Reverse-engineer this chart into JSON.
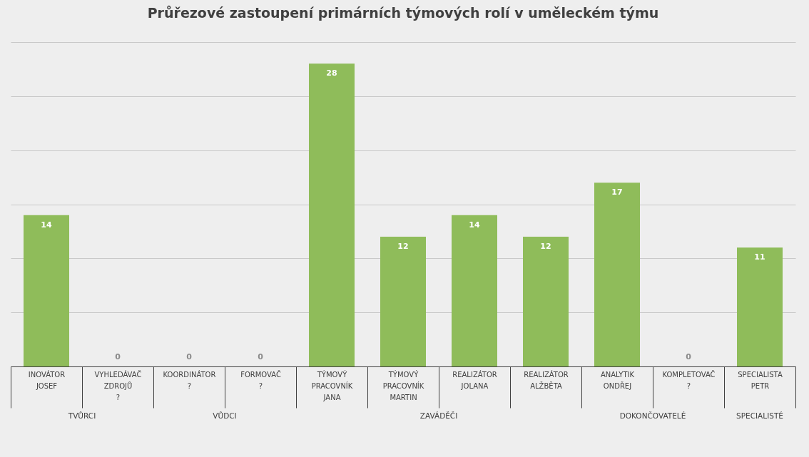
{
  "chart_data": {
    "type": "bar",
    "title": "Průřezové zastoupení primárních týmových rolí v uměleckém týmu",
    "categories": [
      "INOVÁTOR\nJOSEF",
      "VYHLEDÁVAČ\nZDROJŮ\n?",
      "KOORDINÁTOR\n?",
      "FORMOVAČ\n?",
      "TÝMOVÝ\nPRACOVNÍK\nJANA",
      "TÝMOVÝ\nPRACOVNÍK\nMARTIN",
      "REALIZÁTOR\nJOLANA",
      "REALIZÁTOR\nALŽBĚTA",
      "ANALYTIK\nONDŘEJ",
      "KOMPLETOVAČ\n?",
      "SPECIALISTA\nPETR"
    ],
    "values": [
      14,
      0,
      0,
      0,
      28,
      12,
      14,
      12,
      17,
      0,
      11
    ],
    "color": "#8fbc5a",
    "data_labels": true,
    "ylim": [
      0,
      30
    ],
    "yticks": [
      {
        "value": 0,
        "label": null
      },
      {
        "value": 5,
        "label": null
      },
      {
        "value": 10,
        "label": null
      },
      {
        "value": 15,
        "label": null
      },
      {
        "value": 20,
        "label": null
      },
      {
        "value": 25,
        "label": null
      },
      {
        "value": 30,
        "label": null
      }
    ],
    "tick_labels": "x",
    "grid": "y",
    "annotations": [
      "TVŮRCI",
      "VŮDCI",
      "ZAVÁDĚČI",
      "DOKONČOVATELÉ",
      "SPECIALISTÉ"
    ]
  }
}
